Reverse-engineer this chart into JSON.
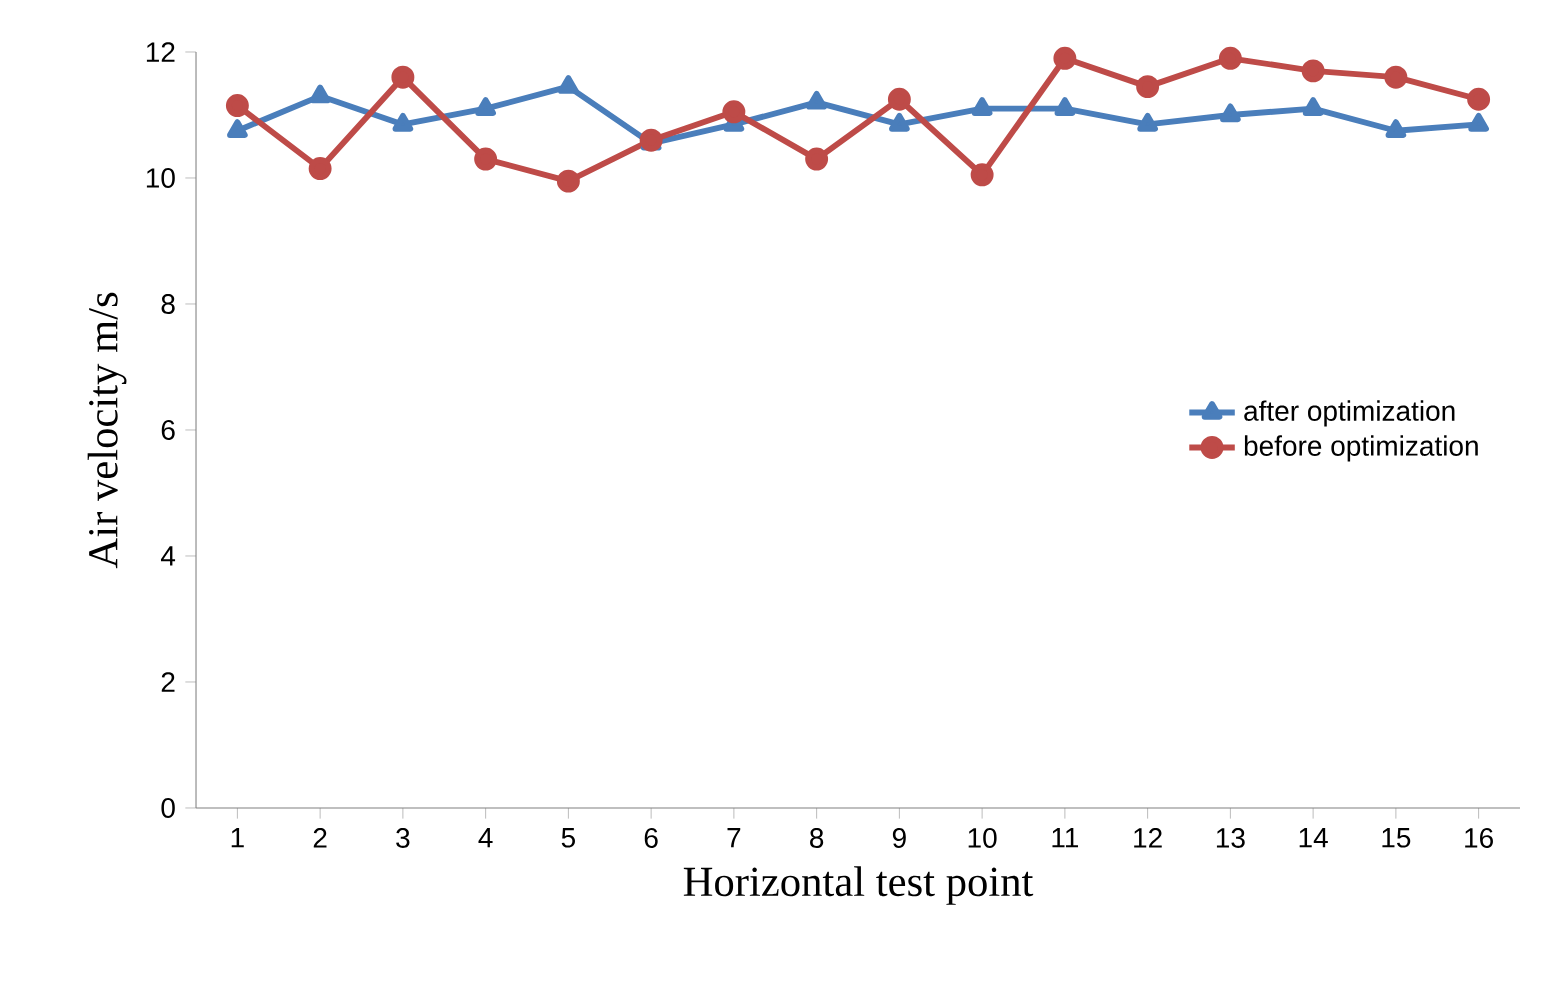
{
  "chart_data": {
    "type": "line",
    "xlabel": "Horizontal  test point",
    "ylabel": "Air velocity m/s",
    "categories": [
      "1",
      "2",
      "3",
      "4",
      "5",
      "6",
      "7",
      "8",
      "9",
      "10",
      "11",
      "12",
      "13",
      "14",
      "15",
      "16"
    ],
    "series": [
      {
        "name": "after optimization",
        "color": "#4a7ebb",
        "marker": "triangle",
        "values": [
          10.75,
          11.3,
          10.85,
          11.1,
          11.45,
          10.55,
          10.85,
          11.2,
          10.85,
          11.1,
          11.1,
          10.85,
          11.0,
          11.1,
          10.75,
          10.85
        ]
      },
      {
        "name": "before optimization",
        "color": "#be4b48",
        "marker": "circle",
        "values": [
          11.15,
          10.15,
          11.6,
          10.3,
          9.95,
          10.6,
          11.05,
          10.3,
          11.25,
          10.05,
          11.9,
          11.45,
          11.9,
          11.7,
          11.6,
          11.25
        ]
      }
    ],
    "ylim": [
      0,
      12
    ],
    "yticks": [
      0,
      2,
      4,
      6,
      8,
      10,
      12
    ],
    "grid": false,
    "legend": "right",
    "line_style": "solid"
  }
}
